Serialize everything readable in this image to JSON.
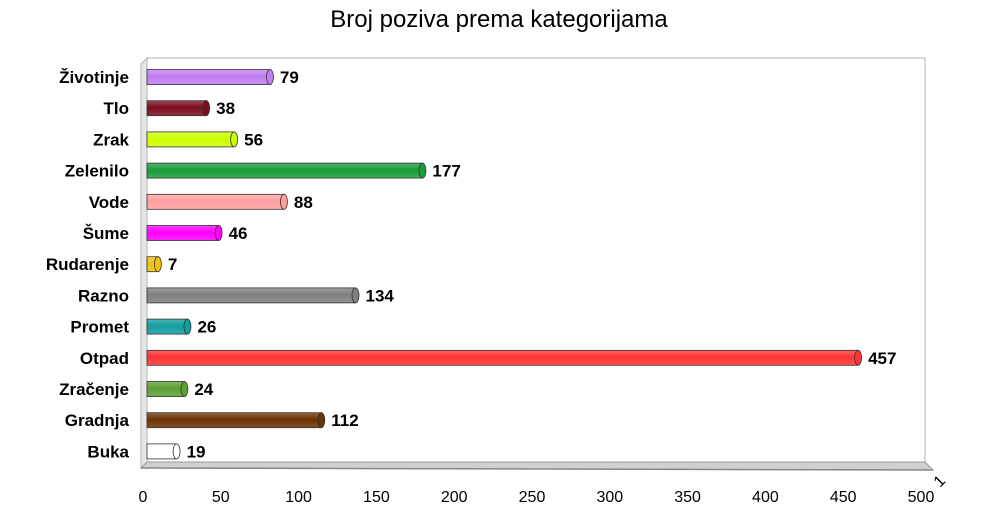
{
  "chart_data": {
    "type": "bar",
    "orientation": "horizontal",
    "title": "Broj poziva prema kategorijama",
    "xlabel": "",
    "ylabel": "",
    "xlim": [
      0,
      500
    ],
    "x_ticks": [
      0,
      50,
      100,
      150,
      200,
      250,
      300,
      350,
      400,
      450,
      500
    ],
    "grid": false,
    "legend": "none",
    "corner_label": "1",
    "categories": [
      "Životinje",
      "Tlo",
      "Zrak",
      "Zelenilo",
      "Vode",
      "Šume",
      "Rudarenje",
      "Razno",
      "Promet",
      "Otpad",
      "Zračenje",
      "Gradnja",
      "Buka"
    ],
    "values": [
      79,
      38,
      56,
      177,
      88,
      46,
      7,
      134,
      26,
      457,
      24,
      112,
      19
    ],
    "colors": [
      "#c27ef0",
      "#7b0d1e",
      "#ccff00",
      "#1a9c3a",
      "#ff9f9f",
      "#ff00ff",
      "#f0c010",
      "#7f7f7f",
      "#139ea0",
      "#ff3333",
      "#5da032",
      "#6b3303",
      "#ffffff"
    ]
  }
}
